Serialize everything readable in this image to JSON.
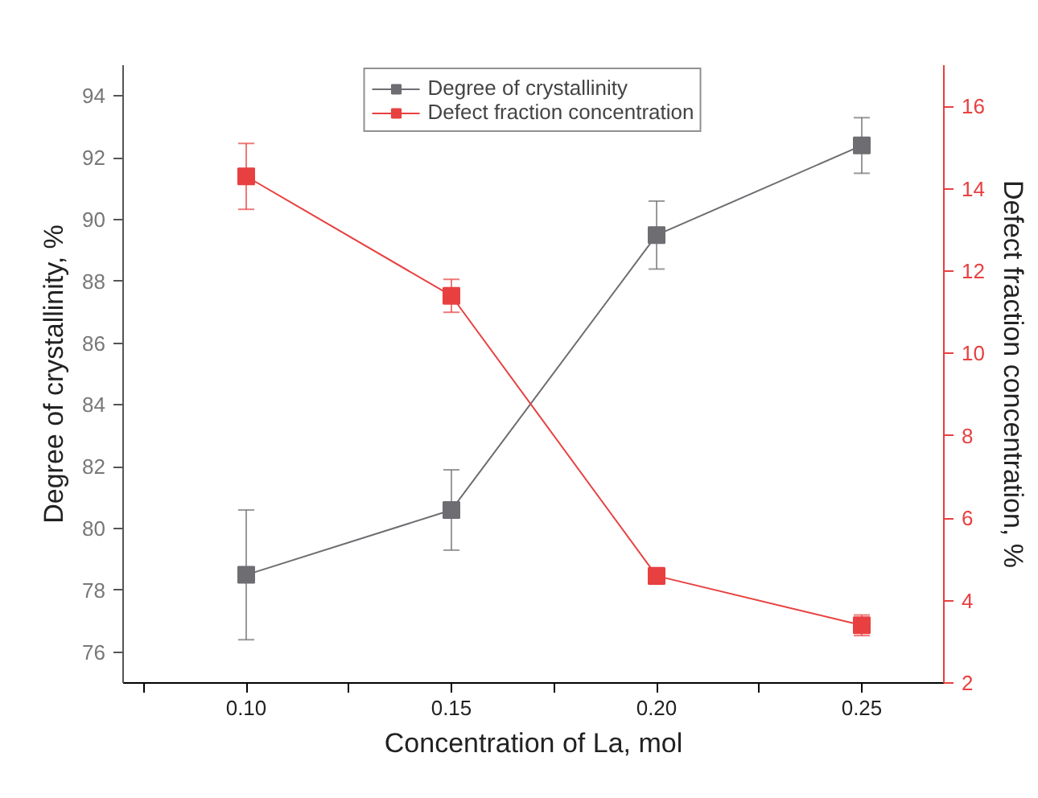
{
  "chart_data": {
    "type": "line",
    "xlabel": "Concentration of La, mol",
    "ylabel": "Degree of crystallinity, %",
    "y2label": "Defect fraction concentration, %",
    "x": [
      0.1,
      0.15,
      0.2,
      0.25
    ],
    "series": [
      {
        "name": "Degree of crystallinity",
        "color": "#6d6d72",
        "values": [
          78.5,
          80.6,
          89.5,
          92.4
        ],
        "errors": [
          [
            76.4,
            80.6
          ],
          [
            79.3,
            81.9
          ],
          [
            88.4,
            90.6
          ],
          [
            91.5,
            93.3
          ]
        ]
      },
      {
        "name": "Defect fraction concentration",
        "color": "#e84040",
        "axis": "y2",
        "values": [
          14.3,
          11.4,
          4.6,
          3.4
        ],
        "errors": [
          [
            13.5,
            15.1
          ],
          [
            11.0,
            11.8
          ],
          [
            4.4,
            4.8
          ],
          [
            3.15,
            3.65
          ]
        ]
      }
    ],
    "xlim": [
      0.07,
      0.27
    ],
    "xticks": [
      {
        "value": 0.075,
        "label": null
      },
      {
        "value": 0.1,
        "label": "0.10"
      },
      {
        "value": 0.125,
        "label": null
      },
      {
        "value": 0.15,
        "label": "0.15"
      },
      {
        "value": 0.175,
        "label": null
      },
      {
        "value": 0.2,
        "label": "0.20"
      },
      {
        "value": 0.225,
        "label": null
      },
      {
        "value": 0.25,
        "label": "0.25"
      }
    ],
    "ylim": [
      75,
      95
    ],
    "yticks": [
      76,
      78,
      80,
      82,
      84,
      86,
      88,
      90,
      92,
      94
    ],
    "y2lim": [
      2,
      17
    ],
    "y2ticks": [
      2,
      4,
      6,
      8,
      10,
      12,
      14,
      16
    ],
    "marker": "square",
    "grid": false,
    "legend": "top"
  }
}
